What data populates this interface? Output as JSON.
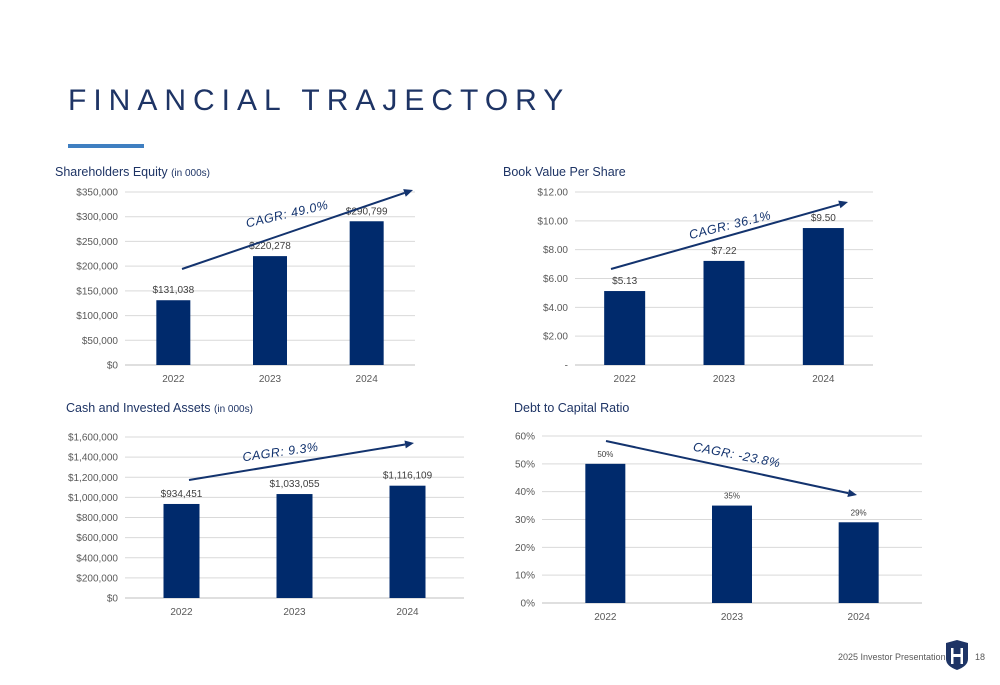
{
  "page": {
    "title": "FINANCIAL TRAJECTORY",
    "footer": "2025 Investor Presentation",
    "page_number": "18",
    "accent_color": "#3f7fc1",
    "title_color": "#1e3465",
    "logo_icon": "h-shield-logo-icon"
  },
  "chart_data": [
    {
      "id": "equity",
      "type": "bar",
      "title": "Shareholders Equity",
      "title_note": "(in 000s)",
      "categories": [
        "2022",
        "2023",
        "2024"
      ],
      "values": [
        131038,
        220278,
        290799
      ],
      "value_labels": [
        "$131,038",
        "$220,278",
        "$290,799"
      ],
      "ylim": [
        0,
        350000
      ],
      "yticks": [
        0,
        50000,
        100000,
        150000,
        200000,
        250000,
        300000,
        350000
      ],
      "ytick_labels": [
        "$0",
        "$50,000",
        "$100,000",
        "$150,000",
        "$200,000",
        "$250,000",
        "$300,000",
        "$350,000"
      ],
      "grid": true,
      "bar_color": "#002a6c",
      "annotation": {
        "text": "CAGR: 49.0%",
        "trend": "up"
      }
    },
    {
      "id": "bvps",
      "type": "bar",
      "title": "Book Value Per Share",
      "title_note": "",
      "categories": [
        "2022",
        "2023",
        "2024"
      ],
      "values": [
        5.13,
        7.22,
        9.5
      ],
      "value_labels": [
        "$5.13",
        "$7.22",
        "$9.50"
      ],
      "ylim": [
        0,
        12
      ],
      "yticks": [
        0,
        2,
        4,
        6,
        8,
        10,
        12
      ],
      "ytick_labels": [
        "-",
        "$2.00",
        "$4.00",
        "$6.00",
        "$8.00",
        "$10.00",
        "$12.00"
      ],
      "grid": true,
      "bar_color": "#002a6c",
      "annotation": {
        "text": "CAGR: 36.1%",
        "trend": "up"
      }
    },
    {
      "id": "cash",
      "type": "bar",
      "title": "Cash and Invested Assets",
      "title_note": "(in 000s)",
      "categories": [
        "2022",
        "2023",
        "2024"
      ],
      "values": [
        934451,
        1033055,
        1116109
      ],
      "value_labels": [
        "$934,451",
        "$1,033,055",
        "$1,116,109"
      ],
      "ylim": [
        0,
        1600000
      ],
      "yticks": [
        0,
        200000,
        400000,
        600000,
        800000,
        1000000,
        1200000,
        1400000,
        1600000
      ],
      "ytick_labels": [
        "$0",
        "$200,000",
        "$400,000",
        "$600,000",
        "$800,000",
        "$1,000,000",
        "$1,200,000",
        "$1,400,000",
        "$1,600,000"
      ],
      "grid": true,
      "bar_color": "#002a6c",
      "annotation": {
        "text": "CAGR: 9.3%",
        "trend": "up"
      }
    },
    {
      "id": "debt",
      "type": "bar",
      "title": "Debt to Capital Ratio",
      "title_note": "",
      "categories": [
        "2022",
        "2023",
        "2024"
      ],
      "values": [
        50,
        35,
        29
      ],
      "value_labels": [
        "50%",
        "35%",
        "29%"
      ],
      "ylim": [
        0,
        60
      ],
      "yticks": [
        0,
        10,
        20,
        30,
        40,
        50,
        60
      ],
      "ytick_labels": [
        "0%",
        "10%",
        "20%",
        "30%",
        "40%",
        "50%",
        "60%"
      ],
      "grid": true,
      "bar_color": "#002a6c",
      "annotation": {
        "text": "CAGR: -23.8%",
        "trend": "down"
      }
    }
  ]
}
